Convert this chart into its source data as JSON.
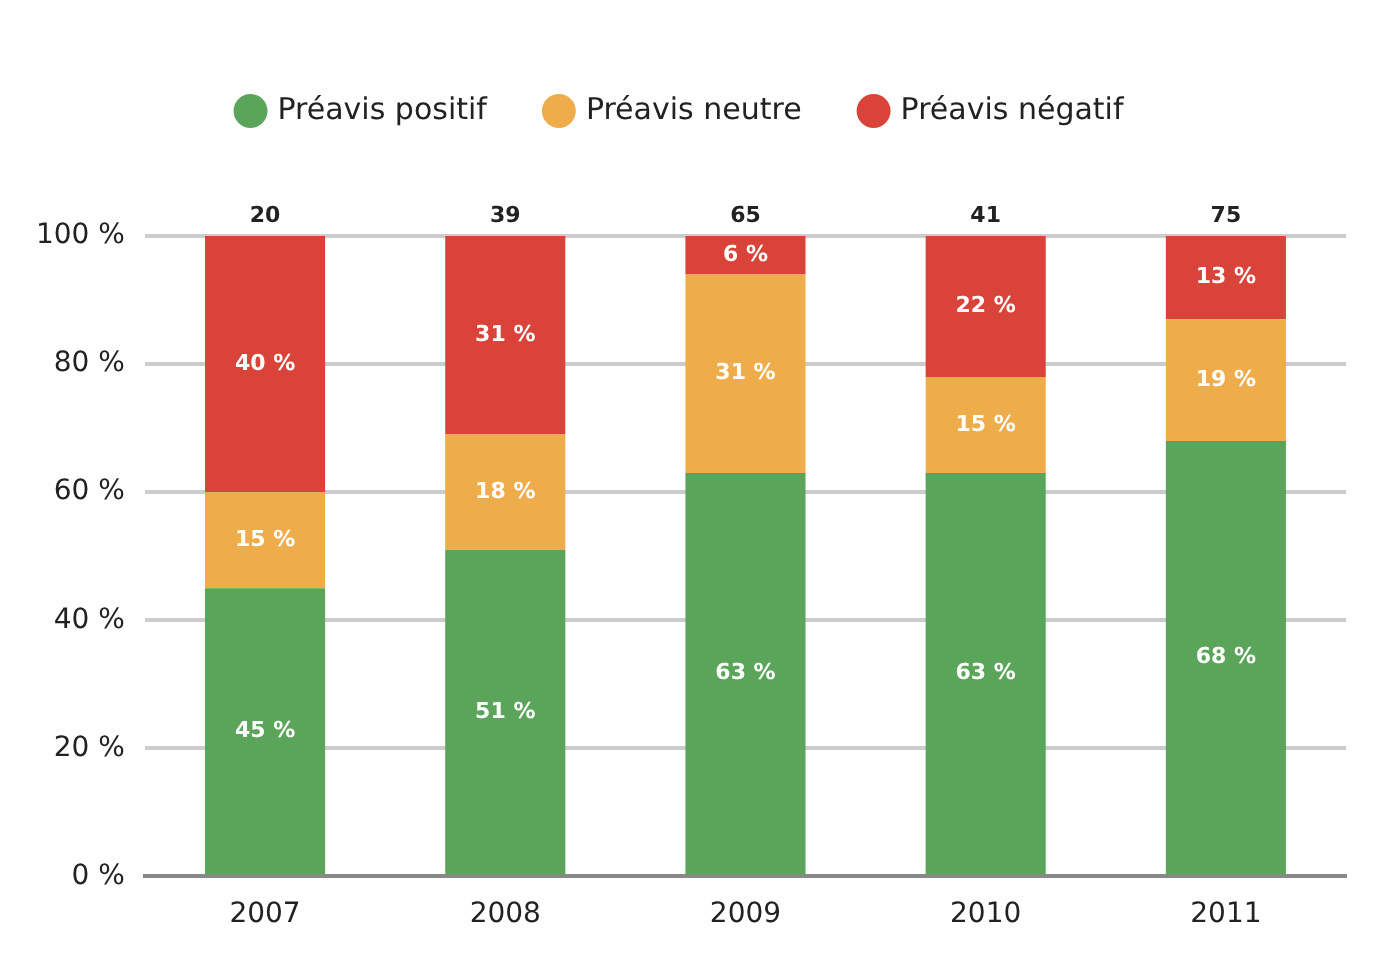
{
  "chart_data": {
    "type": "bar",
    "stacked": true,
    "categories": [
      "2007",
      "2008",
      "2009",
      "2010",
      "2011"
    ],
    "series": [
      {
        "name": "Préavis positif",
        "color": "#5aa55a",
        "values": [
          45,
          51,
          63,
          63,
          68
        ],
        "value_labels": [
          "45 %",
          "51 %",
          "63 %",
          "63 %",
          "68 %"
        ]
      },
      {
        "name": "Préavis neutre",
        "color": "#eeac4a",
        "values": [
          15,
          18,
          31,
          15,
          19
        ],
        "value_labels": [
          "15 %",
          "18 %",
          "31 %",
          "15 %",
          "19 %"
        ]
      },
      {
        "name": "Préavis négatif",
        "color": "#d9433a",
        "values": [
          40,
          31,
          6,
          22,
          13
        ],
        "value_labels": [
          "40 %",
          "31 %",
          "6 %",
          "22 %",
          "13 %"
        ]
      }
    ],
    "annotations": [
      {
        "text": "20",
        "x": "2007",
        "y": 100
      },
      {
        "text": "39",
        "x": "2008",
        "y": 100
      },
      {
        "text": "65",
        "x": "2009",
        "y": 100
      },
      {
        "text": "41",
        "x": "2010",
        "y": 100
      },
      {
        "text": "75",
        "x": "2011",
        "y": 100
      }
    ],
    "ylim": [
      0,
      100
    ],
    "yticks": [
      {
        "value": 0,
        "label": "0 %"
      },
      {
        "value": 20,
        "label": "20 %"
      },
      {
        "value": 40,
        "label": "40 %"
      },
      {
        "value": 60,
        "label": "60 %"
      },
      {
        "value": 80,
        "label": "80 %"
      },
      {
        "value": 100,
        "label": "100 %"
      }
    ],
    "grid": "y",
    "legend": "top"
  }
}
